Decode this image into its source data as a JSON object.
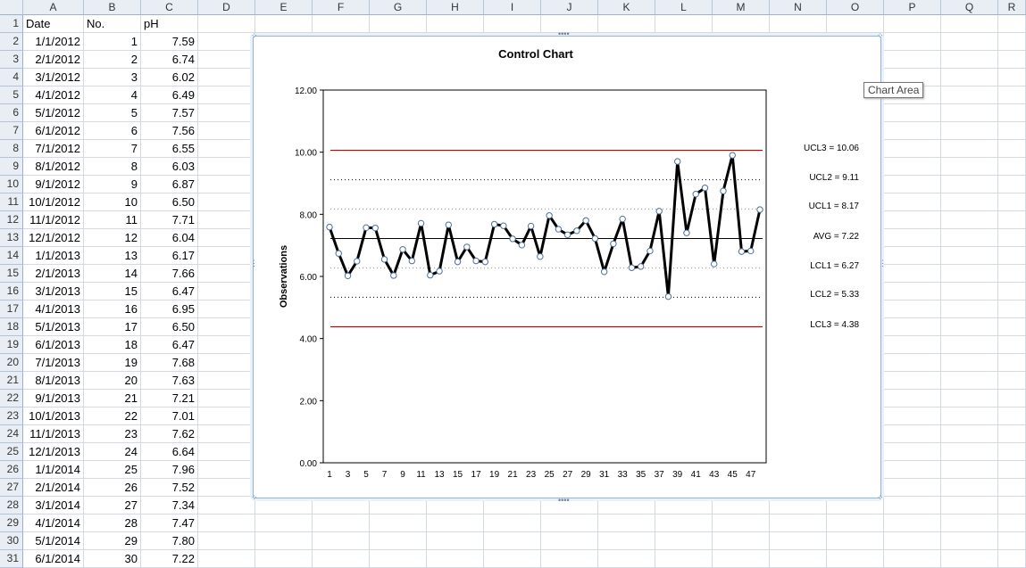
{
  "columns": [
    "A",
    "B",
    "C",
    "D",
    "E",
    "F",
    "G",
    "H",
    "I",
    "J",
    "K",
    "L",
    "M",
    "N",
    "O",
    "P",
    "Q",
    "R"
  ],
  "headers": {
    "date": "Date",
    "no": "No.",
    "ph": "pH"
  },
  "rows": [
    {
      "date": "1/1/2012",
      "no": "1",
      "ph": "7.59"
    },
    {
      "date": "2/1/2012",
      "no": "2",
      "ph": "6.74"
    },
    {
      "date": "3/1/2012",
      "no": "3",
      "ph": "6.02"
    },
    {
      "date": "4/1/2012",
      "no": "4",
      "ph": "6.49"
    },
    {
      "date": "5/1/2012",
      "no": "5",
      "ph": "7.57"
    },
    {
      "date": "6/1/2012",
      "no": "6",
      "ph": "7.56"
    },
    {
      "date": "7/1/2012",
      "no": "7",
      "ph": "6.55"
    },
    {
      "date": "8/1/2012",
      "no": "8",
      "ph": "6.03"
    },
    {
      "date": "9/1/2012",
      "no": "9",
      "ph": "6.87"
    },
    {
      "date": "10/1/2012",
      "no": "10",
      "ph": "6.50"
    },
    {
      "date": "11/1/2012",
      "no": "11",
      "ph": "7.71"
    },
    {
      "date": "12/1/2012",
      "no": "12",
      "ph": "6.04"
    },
    {
      "date": "1/1/2013",
      "no": "13",
      "ph": "6.17"
    },
    {
      "date": "2/1/2013",
      "no": "14",
      "ph": "7.66"
    },
    {
      "date": "3/1/2013",
      "no": "15",
      "ph": "6.47"
    },
    {
      "date": "4/1/2013",
      "no": "16",
      "ph": "6.95"
    },
    {
      "date": "5/1/2013",
      "no": "17",
      "ph": "6.50"
    },
    {
      "date": "6/1/2013",
      "no": "18",
      "ph": "6.47"
    },
    {
      "date": "7/1/2013",
      "no": "19",
      "ph": "7.68"
    },
    {
      "date": "8/1/2013",
      "no": "20",
      "ph": "7.63"
    },
    {
      "date": "9/1/2013",
      "no": "21",
      "ph": "7.21"
    },
    {
      "date": "10/1/2013",
      "no": "22",
      "ph": "7.01"
    },
    {
      "date": "11/1/2013",
      "no": "23",
      "ph": "7.62"
    },
    {
      "date": "12/1/2013",
      "no": "24",
      "ph": "6.64"
    },
    {
      "date": "1/1/2014",
      "no": "25",
      "ph": "7.96"
    },
    {
      "date": "2/1/2014",
      "no": "26",
      "ph": "7.52"
    },
    {
      "date": "3/1/2014",
      "no": "27",
      "ph": "7.34"
    },
    {
      "date": "4/1/2014",
      "no": "28",
      "ph": "7.47"
    },
    {
      "date": "5/1/2014",
      "no": "29",
      "ph": "7.80"
    },
    {
      "date": "6/1/2014",
      "no": "30",
      "ph": "7.22"
    }
  ],
  "tooltip": "Chart Area",
  "colors": {
    "data_line": "#000000",
    "limit3": "#c00000",
    "grid_border": "#000000",
    "marker_fill": "#ffffff",
    "marker_stroke": "#4f6e9a"
  },
  "chart_data": {
    "type": "line",
    "title": "Control Chart",
    "ylabel": "Observations",
    "xlabel": "",
    "ylim": [
      0,
      12
    ],
    "yticks": [
      "0.00",
      "2.00",
      "4.00",
      "6.00",
      "8.00",
      "10.00",
      "12.00"
    ],
    "xtick_labels": [
      "1",
      "3",
      "5",
      "7",
      "9",
      "11",
      "13",
      "15",
      "17",
      "19",
      "21",
      "23",
      "25",
      "27",
      "29",
      "31",
      "33",
      "35",
      "37",
      "39",
      "41",
      "43",
      "45",
      "47"
    ],
    "x": [
      1,
      2,
      3,
      4,
      5,
      6,
      7,
      8,
      9,
      10,
      11,
      12,
      13,
      14,
      15,
      16,
      17,
      18,
      19,
      20,
      21,
      22,
      23,
      24,
      25,
      26,
      27,
      28,
      29,
      30,
      31,
      32,
      33,
      34,
      35,
      36,
      37,
      38,
      39,
      40,
      41,
      42,
      43,
      44,
      45,
      46,
      47,
      48
    ],
    "values": [
      7.59,
      6.74,
      6.02,
      6.49,
      7.57,
      7.56,
      6.55,
      6.03,
      6.87,
      6.5,
      7.71,
      6.04,
      6.17,
      7.66,
      6.47,
      6.95,
      6.5,
      6.47,
      7.68,
      7.63,
      7.21,
      7.01,
      7.62,
      6.64,
      7.96,
      7.52,
      7.34,
      7.47,
      7.8,
      7.22,
      6.15,
      7.05,
      7.85,
      6.28,
      6.32,
      6.82,
      8.1,
      5.35,
      9.7,
      7.4,
      8.65,
      8.85,
      6.4,
      8.75,
      9.9,
      6.8,
      6.82,
      8.15
    ],
    "lines": [
      {
        "name": "UCL3",
        "value": 10.06,
        "label": "UCL3 = 10.06",
        "style": "solid-red"
      },
      {
        "name": "UCL2",
        "value": 9.11,
        "label": "UCL2 = 9.11",
        "style": "dotted"
      },
      {
        "name": "UCL1",
        "value": 8.17,
        "label": "UCL1 = 8.17",
        "style": "dotted-light"
      },
      {
        "name": "AVG",
        "value": 7.22,
        "label": "AVG =  7.22",
        "style": "solid-black"
      },
      {
        "name": "LCL1",
        "value": 6.27,
        "label": "LCL1 = 6.27",
        "style": "dotted-light"
      },
      {
        "name": "LCL2",
        "value": 5.33,
        "label": "LCL2 = 5.33",
        "style": "dotted"
      },
      {
        "name": "LCL3",
        "value": 4.38,
        "label": "LCL3 = 4.38",
        "style": "solid-red"
      }
    ]
  }
}
